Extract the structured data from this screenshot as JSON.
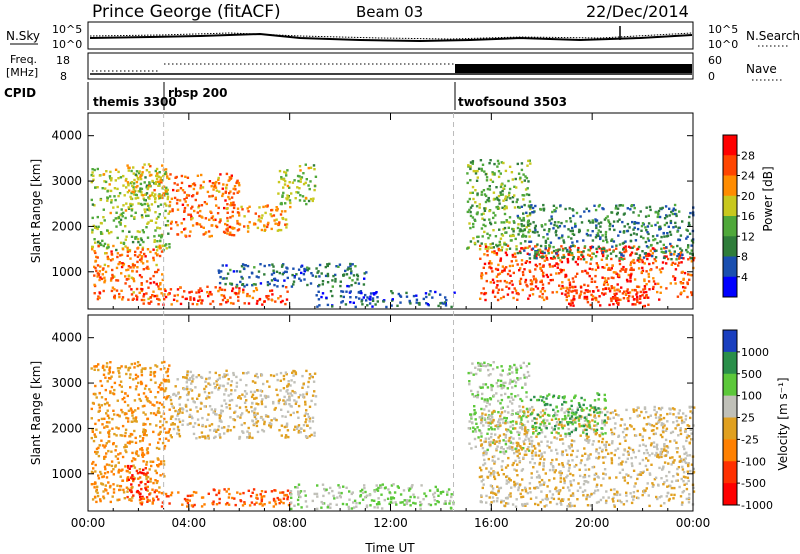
{
  "header": {
    "title": "Prince George (fitACF)",
    "beam": "Beam 03",
    "date": "22/Dec/2014"
  },
  "noise_panel": {
    "left_label": "N.Sky",
    "left_ticks": [
      "10^5",
      "10^0"
    ],
    "right_ticks": [
      "10^5",
      "10^0"
    ],
    "right_label": "N.Search"
  },
  "freq_panel": {
    "left_label_line1": "Freq.",
    "left_label_line2": "[MHz]",
    "left_ticks": [
      "18",
      "8"
    ],
    "right_ticks": [
      "60",
      "0"
    ],
    "right_label": "Nave"
  },
  "cpid_panel": {
    "label": "CPID",
    "modes": [
      {
        "name": "themis 3300",
        "start_hour": 0.0
      },
      {
        "name": "rbsp 200",
        "start_hour": 3.0
      },
      {
        "name": "twofsound 3503",
        "start_hour": 14.5
      }
    ]
  },
  "power_panel": {
    "ylabel": "Slant Range [km]",
    "yticks": [
      "1000",
      "2000",
      "3000",
      "4000"
    ],
    "colorbar_label": "Power [dB]",
    "colorbar_ticks": [
      "4",
      "8",
      "12",
      "16",
      "20",
      "24",
      "28"
    ],
    "colors": [
      "#0000ff",
      "#1a4fb0",
      "#2f7d3a",
      "#4fa83a",
      "#c8c81e",
      "#ff8c00",
      "#ff4500",
      "#ff0000"
    ]
  },
  "velocity_panel": {
    "ylabel": "Slant Range [km]",
    "yticks": [
      "1000",
      "2000",
      "3000",
      "4000"
    ],
    "colorbar_label": "Velocity [m s⁻¹]",
    "colorbar_ticks": [
      "1000",
      "500",
      "100",
      "25",
      "-25",
      "-100",
      "-500",
      "-1000"
    ],
    "colors": [
      "#1a3fbf",
      "#2a8f4a",
      "#5cc83a",
      "#c0c0b8",
      "#e0a020",
      "#ff8000",
      "#ff3000",
      "#ff0000"
    ]
  },
  "x_axis": {
    "label": "Time UT",
    "ticks": [
      "00:00",
      "04:00",
      "08:00",
      "12:00",
      "16:00",
      "20:00",
      "00:00"
    ]
  },
  "chart_data": {
    "type": "heatmap",
    "x_unit": "hour UT",
    "xlim": [
      0,
      24
    ],
    "ylim_km": [
      180,
      4500
    ],
    "power_regions": [
      {
        "t0": 0.1,
        "t1": 3.2,
        "r0": 1500,
        "r1": 3300,
        "value": 16
      },
      {
        "t0": 1.5,
        "t1": 3.2,
        "r0": 2600,
        "r1": 3400,
        "value": 20
      },
      {
        "t0": 3.2,
        "t1": 6.0,
        "r0": 1800,
        "r1": 3200,
        "value": 24
      },
      {
        "t0": 6.0,
        "t1": 8.0,
        "r0": 1900,
        "r1": 2500,
        "value": 22
      },
      {
        "t0": 7.5,
        "t1": 9.0,
        "r0": 2500,
        "r1": 3400,
        "value": 16
      },
      {
        "t0": 0.1,
        "t1": 3.0,
        "r0": 400,
        "r1": 1600,
        "value": 24
      },
      {
        "t0": 2.0,
        "t1": 8.0,
        "r0": 300,
        "r1": 700,
        "value": 26
      },
      {
        "t0": 5.0,
        "t1": 11.0,
        "r0": 700,
        "r1": 1200,
        "value": 8
      },
      {
        "t0": 9.0,
        "t1": 14.5,
        "r0": 250,
        "r1": 600,
        "value": 6
      },
      {
        "t0": 15.0,
        "t1": 17.5,
        "r0": 1500,
        "r1": 3500,
        "value": 14
      },
      {
        "t0": 15.5,
        "t1": 24.0,
        "r0": 400,
        "r1": 1600,
        "value": 26
      },
      {
        "t0": 17.0,
        "t1": 24.0,
        "r0": 1300,
        "r1": 2500,
        "value": 10
      },
      {
        "t0": 19.0,
        "t1": 22.5,
        "r0": 250,
        "r1": 700,
        "value": 28
      }
    ],
    "velocity_regions": [
      {
        "t0": 0.1,
        "t1": 3.2,
        "r0": 1500,
        "r1": 3500,
        "value": -100
      },
      {
        "t0": 3.2,
        "t1": 9.0,
        "r0": 1800,
        "r1": 3300,
        "value": 0
      },
      {
        "t0": 0.1,
        "t1": 3.0,
        "r0": 400,
        "r1": 1500,
        "value": -100
      },
      {
        "t0": 1.5,
        "t1": 2.5,
        "r0": 500,
        "r1": 1200,
        "value": -1000
      },
      {
        "t0": 2.0,
        "t1": 8.0,
        "r0": 300,
        "r1": 700,
        "value": -500
      },
      {
        "t0": 8.0,
        "t1": 14.5,
        "r0": 250,
        "r1": 800,
        "value": 100
      },
      {
        "t0": 15.0,
        "t1": 17.5,
        "r0": 1500,
        "r1": 3500,
        "value": 100
      },
      {
        "t0": 15.5,
        "t1": 24.0,
        "r0": 300,
        "r1": 2500,
        "value": 0
      },
      {
        "t0": 17.5,
        "t1": 20.5,
        "r0": 1900,
        "r1": 2800,
        "value": 500
      }
    ]
  }
}
